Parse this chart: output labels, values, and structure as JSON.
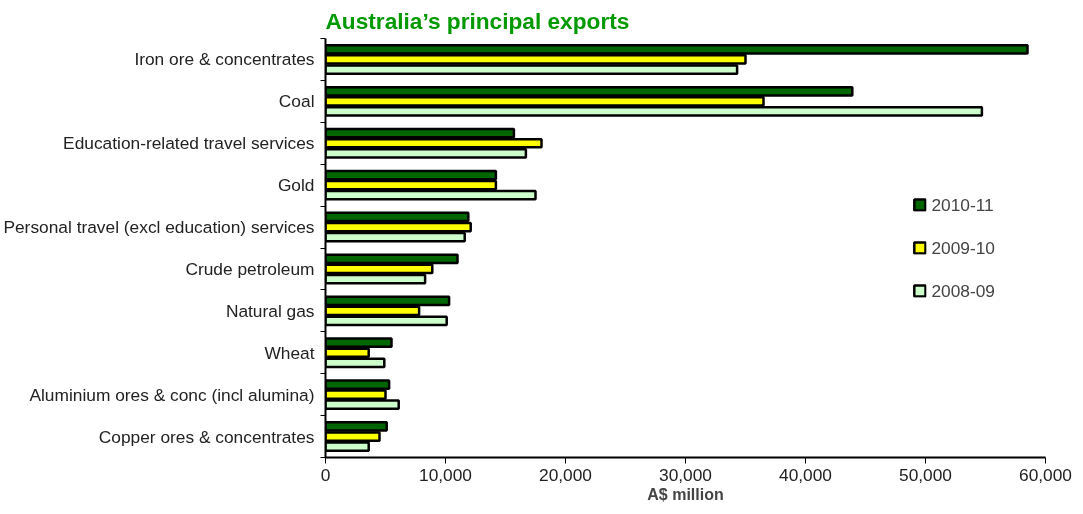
{
  "chart_data": {
    "type": "bar",
    "orientation": "horizontal",
    "title": "Australia’s principal exports",
    "xlabel": "A$ million",
    "categories": [
      "Iron ore & concentrates",
      "Coal",
      "Education-related travel services",
      "Gold",
      "Personal travel (excl education) services",
      "Crude petroleum",
      "Natural gas",
      "Wheat",
      "Aluminium ores & conc (incl alumina)",
      "Copper ores & concentrates"
    ],
    "series": [
      {
        "name": "2010-11",
        "color": "#006600",
        "values": [
          58500,
          43900,
          15700,
          14200,
          11900,
          11000,
          10300,
          5500,
          5300,
          5100
        ]
      },
      {
        "name": "2009-10",
        "color": "#ffff00",
        "values": [
          35000,
          36500,
          18000,
          14200,
          12100,
          8900,
          7800,
          3600,
          5000,
          4500
        ]
      },
      {
        "name": "2008-09",
        "color": "#ccffcc",
        "values": [
          34300,
          54700,
          16700,
          17500,
          11600,
          8300,
          10100,
          4900,
          6100,
          3600
        ]
      }
    ],
    "xlim": [
      0,
      60000
    ],
    "xticks": [
      0,
      {
        "value": 10000,
        "label": "10,000"
      },
      {
        "value": 20000,
        "label": "20,000"
      },
      {
        "value": 30000,
        "label": "30,000"
      },
      {
        "value": 40000,
        "label": "40,000"
      },
      {
        "value": 50000,
        "label": "50,000"
      },
      {
        "value": 60000,
        "label": "60,000"
      }
    ],
    "grid": false,
    "legend": "right"
  }
}
